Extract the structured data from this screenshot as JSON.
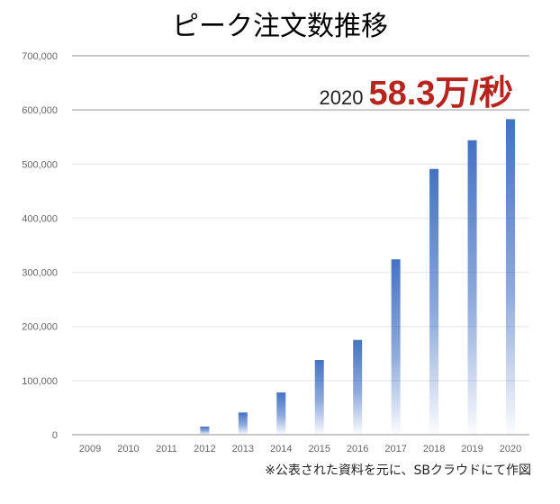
{
  "chart_data": {
    "type": "bar",
    "title": "ピーク注文数推移",
    "xlabel": "",
    "ylabel": "",
    "ylim": [
      0,
      700000
    ],
    "yticks": [
      0,
      100000,
      200000,
      300000,
      400000,
      500000,
      600000,
      700000
    ],
    "ytick_labels": [
      "0",
      "100,000",
      "200,000",
      "300,000",
      "400,000",
      "500,000",
      "600,000",
      "700,000"
    ],
    "categories": [
      "2009",
      "2010",
      "2011",
      "2012",
      "2013",
      "2014",
      "2015",
      "2016",
      "2017",
      "2018",
      "2019",
      "2020"
    ],
    "values": [
      0,
      0,
      0,
      15000,
      41000,
      78000,
      138000,
      175000,
      324000,
      491000,
      544000,
      583000
    ],
    "grid": true,
    "bar_color": "#4472c4",
    "annotation": {
      "year": "2020",
      "value": "58.3万/秒",
      "color": "#b5251e"
    },
    "source_note": "※公表された資料を元に、SBクラウドにて作図"
  }
}
